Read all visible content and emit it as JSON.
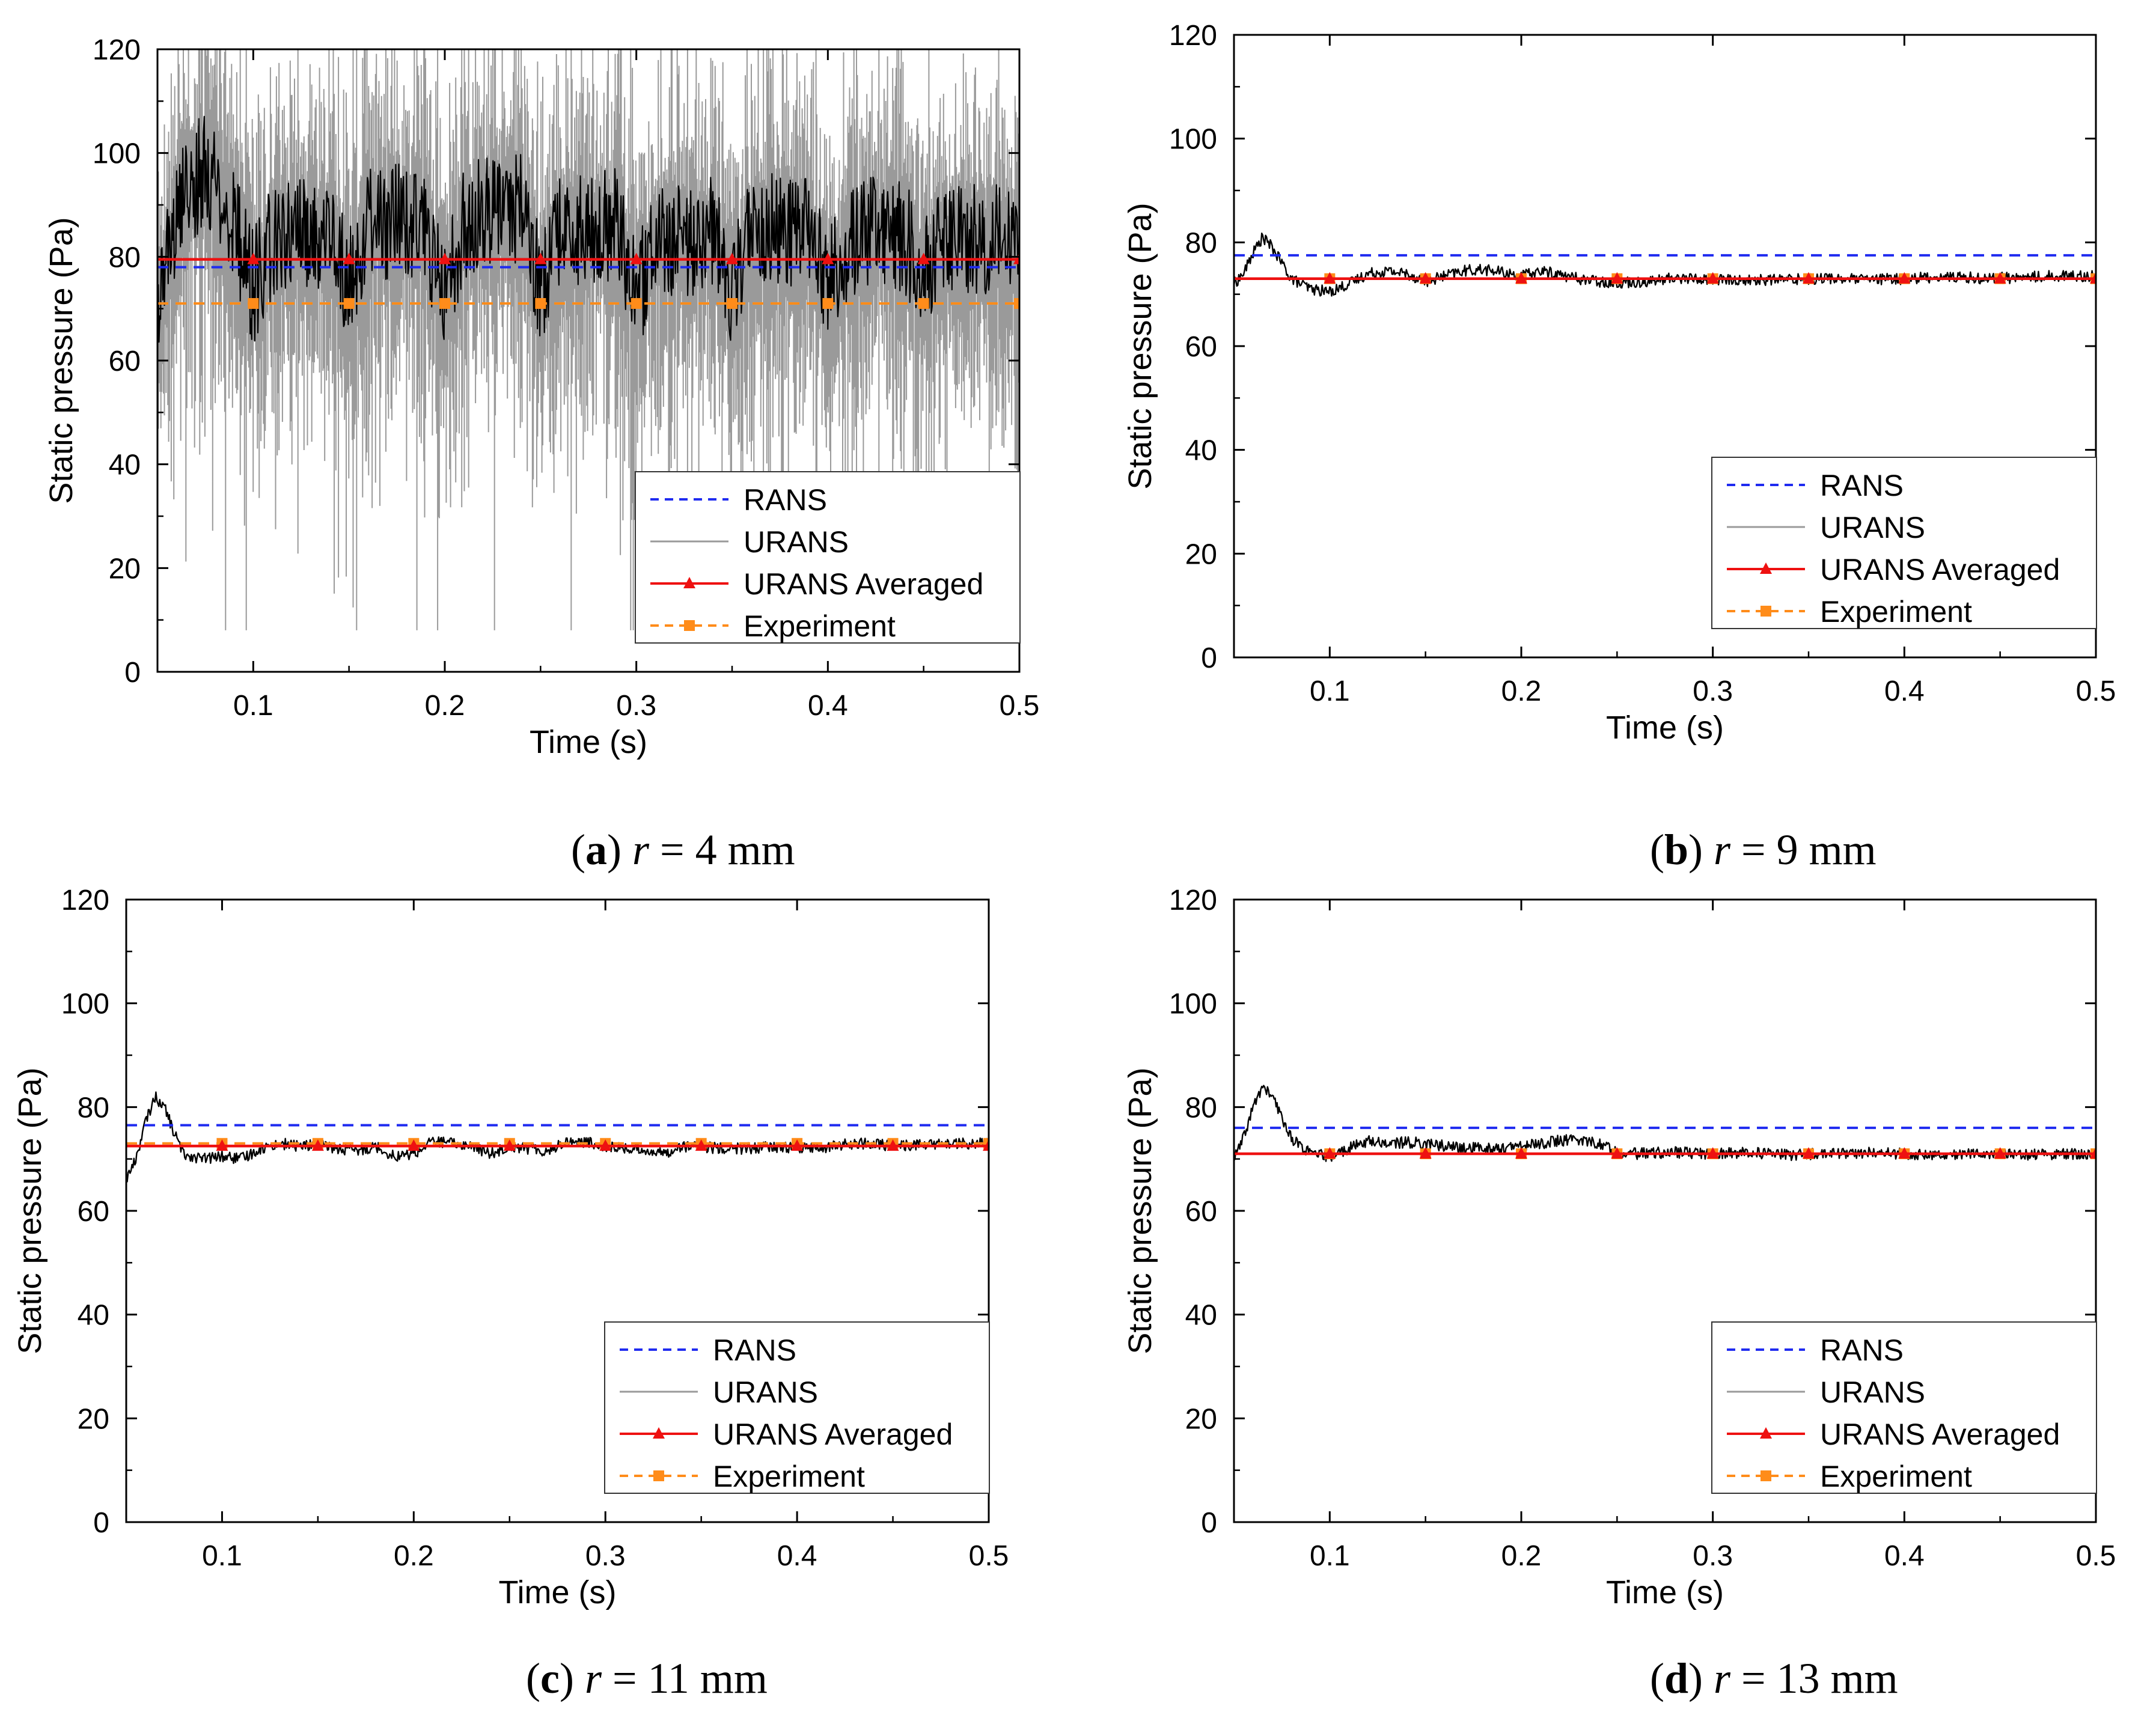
{
  "colors": {
    "rans": "#1f2bf0",
    "urans": "#000000",
    "urans_spikes": "#9a9a9a",
    "urans_avg": "#ee1111",
    "experiment": "#ff8c1a",
    "axis": "#000000"
  },
  "chart_data": [
    {
      "id": "a",
      "type": "line",
      "title": "",
      "xlabel": "Time (s)",
      "ylabel": "Static pressure (Pa)",
      "xlim": [
        0.05,
        0.5
      ],
      "ylim": [
        0,
        120
      ],
      "xticks": [
        0.1,
        0.2,
        0.3,
        0.4,
        0.5
      ],
      "xtick_labels": [
        "0.1",
        "0.2",
        "0.3",
        "0.4",
        "0.5"
      ],
      "yticks": [
        0,
        20,
        40,
        60,
        80,
        100,
        120
      ],
      "ytick_labels": [
        "0",
        "20",
        "40",
        "60",
        "80",
        "100",
        "120"
      ],
      "legend_position": "bottom-right",
      "caption": {
        "letter": "a",
        "pre": "(",
        "mid": ") ",
        "var": "r",
        "post": " = 4 mm"
      },
      "series": [
        {
          "name": "RANS",
          "style": "dashed",
          "values": [
            [
              0.05,
              78
            ],
            [
              0.5,
              78
            ]
          ]
        },
        {
          "name": "URANS",
          "style": "thin",
          "values": [
            [
              0.05,
              68
            ],
            [
              0.06,
              88
            ],
            [
              0.075,
              98
            ],
            [
              0.09,
              86
            ],
            [
              0.1,
              74
            ],
            [
              0.11,
              83
            ],
            [
              0.125,
              85
            ],
            [
              0.14,
              84
            ],
            [
              0.15,
              74
            ],
            [
              0.16,
              86
            ],
            [
              0.175,
              87
            ],
            [
              0.19,
              85
            ],
            [
              0.2,
              73
            ],
            [
              0.21,
              86
            ],
            [
              0.225,
              90
            ],
            [
              0.24,
              89
            ],
            [
              0.25,
              74
            ],
            [
              0.26,
              85
            ],
            [
              0.275,
              86
            ],
            [
              0.29,
              86
            ],
            [
              0.3,
              72
            ],
            [
              0.31,
              83
            ],
            [
              0.325,
              83
            ],
            [
              0.34,
              85
            ],
            [
              0.35,
              74
            ],
            [
              0.36,
              84
            ],
            [
              0.375,
              86
            ],
            [
              0.39,
              84
            ],
            [
              0.4,
              74
            ],
            [
              0.41,
              82
            ],
            [
              0.425,
              85
            ],
            [
              0.44,
              84
            ],
            [
              0.45,
              76
            ],
            [
              0.46,
              82
            ],
            [
              0.475,
              84
            ],
            [
              0.49,
              83
            ],
            [
              0.5,
              80
            ]
          ]
        },
        {
          "name": "URANS Averaged",
          "style": "solid-triangle",
          "values": [
            [
              0.05,
              79.5
            ],
            [
              0.5,
              79.5
            ]
          ]
        },
        {
          "name": "Experiment",
          "style": "dashed-square",
          "values": [
            [
              0.05,
              71
            ],
            [
              0.5,
              71
            ]
          ]
        }
      ]
    },
    {
      "id": "b",
      "type": "line",
      "title": "",
      "xlabel": "Time (s)",
      "ylabel": "Static pressure (Pa)",
      "xlim": [
        0.05,
        0.5
      ],
      "ylim": [
        0,
        120
      ],
      "xticks": [
        0.1,
        0.2,
        0.3,
        0.4,
        0.5
      ],
      "xtick_labels": [
        "0.1",
        "0.2",
        "0.3",
        "0.4",
        "0.5"
      ],
      "yticks": [
        0,
        20,
        40,
        60,
        80,
        100,
        120
      ],
      "ytick_labels": [
        "0",
        "20",
        "40",
        "60",
        "80",
        "100",
        "120"
      ],
      "legend_position": "bottom-right",
      "caption": {
        "letter": "b",
        "pre": "(",
        "mid": ") ",
        "var": "r",
        "post": " = 9 mm"
      },
      "series": [
        {
          "name": "RANS",
          "style": "dashed",
          "values": [
            [
              0.05,
              77.5
            ],
            [
              0.5,
              77.5
            ]
          ]
        },
        {
          "name": "URANS",
          "style": "thin",
          "values": [
            [
              0.05,
              72
            ],
            [
              0.055,
              74
            ],
            [
              0.06,
              78
            ],
            [
              0.065,
              81
            ],
            [
              0.07,
              79
            ],
            [
              0.075,
              76
            ],
            [
              0.08,
              73
            ],
            [
              0.09,
              71
            ],
            [
              0.1,
              70.5
            ],
            [
              0.11,
              72
            ],
            [
              0.12,
              74
            ],
            [
              0.13,
              74.5
            ],
            [
              0.14,
              74
            ],
            [
              0.15,
              72.5
            ],
            [
              0.16,
              73.5
            ],
            [
              0.17,
              74.5
            ],
            [
              0.18,
              74.8
            ],
            [
              0.19,
              74.2
            ],
            [
              0.2,
              73.5
            ],
            [
              0.21,
              74.5
            ],
            [
              0.22,
              73.8
            ],
            [
              0.23,
              73
            ],
            [
              0.24,
              72.5
            ],
            [
              0.25,
              72.3
            ],
            [
              0.26,
              72.4
            ],
            [
              0.27,
              72.6
            ],
            [
              0.28,
              73.2
            ],
            [
              0.29,
              73
            ],
            [
              0.3,
              72.8
            ],
            [
              0.32,
              72.7
            ],
            [
              0.34,
              72.9
            ],
            [
              0.36,
              73.1
            ],
            [
              0.38,
              72.8
            ],
            [
              0.4,
              73
            ],
            [
              0.42,
              73.4
            ],
            [
              0.44,
              73.1
            ],
            [
              0.46,
              73.2
            ],
            [
              0.48,
              73.6
            ],
            [
              0.5,
              73.5
            ]
          ]
        },
        {
          "name": "URANS Averaged",
          "style": "solid-triangle",
          "values": [
            [
              0.05,
              73
            ],
            [
              0.5,
              73
            ]
          ]
        },
        {
          "name": "Experiment",
          "style": "dashed-square",
          "values": [
            [
              0.05,
              73
            ],
            [
              0.5,
              73
            ]
          ]
        }
      ]
    },
    {
      "id": "c",
      "type": "line",
      "title": "",
      "xlabel": "Time (s)",
      "ylabel": "Static pressure (Pa)",
      "xlim": [
        0.05,
        0.5
      ],
      "ylim": [
        0,
        120
      ],
      "xticks": [
        0.1,
        0.2,
        0.3,
        0.4,
        0.5
      ],
      "xtick_labels": [
        "0.1",
        "0.2",
        "0.3",
        "0.4",
        "0.5"
      ],
      "yticks": [
        0,
        20,
        40,
        60,
        80,
        100,
        120
      ],
      "ytick_labels": [
        "0",
        "20",
        "40",
        "60",
        "80",
        "100",
        "120"
      ],
      "legend_position": "bottom-right",
      "caption": {
        "letter": "c",
        "pre": "(",
        "mid": ") ",
        "var": "r",
        "post": " = 11 mm"
      },
      "series": [
        {
          "name": "RANS",
          "style": "dashed",
          "values": [
            [
              0.05,
              76.5
            ],
            [
              0.5,
              76.5
            ]
          ]
        },
        {
          "name": "URANS",
          "style": "thin",
          "values": [
            [
              0.05,
              66
            ],
            [
              0.055,
              70
            ],
            [
              0.06,
              77
            ],
            [
              0.065,
              82
            ],
            [
              0.07,
              80
            ],
            [
              0.075,
              75
            ],
            [
              0.08,
              71
            ],
            [
              0.09,
              70
            ],
            [
              0.1,
              70.5
            ],
            [
              0.11,
              70
            ],
            [
              0.12,
              72
            ],
            [
              0.13,
              73
            ],
            [
              0.14,
              72.5
            ],
            [
              0.15,
              72.8
            ],
            [
              0.16,
              72
            ],
            [
              0.17,
              71.5
            ],
            [
              0.18,
              72.5
            ],
            [
              0.19,
              70.5
            ],
            [
              0.2,
              71
            ],
            [
              0.21,
              73.5
            ],
            [
              0.22,
              73
            ],
            [
              0.23,
              72.5
            ],
            [
              0.24,
              71
            ],
            [
              0.25,
              72.5
            ],
            [
              0.26,
              72
            ],
            [
              0.27,
              71.5
            ],
            [
              0.28,
              73.5
            ],
            [
              0.29,
              73.2
            ],
            [
              0.3,
              72.5
            ],
            [
              0.31,
              72
            ],
            [
              0.32,
              71.8
            ],
            [
              0.33,
              71
            ],
            [
              0.34,
              72.5
            ],
            [
              0.35,
              72.2
            ],
            [
              0.37,
              72
            ],
            [
              0.39,
              72.3
            ],
            [
              0.41,
              72
            ],
            [
              0.43,
              73
            ],
            [
              0.45,
              72.6
            ],
            [
              0.47,
              72.8
            ],
            [
              0.5,
              73
            ]
          ]
        },
        {
          "name": "URANS Averaged",
          "style": "solid-triangle",
          "values": [
            [
              0.05,
              72.5
            ],
            [
              0.5,
              72.5
            ]
          ]
        },
        {
          "name": "Experiment",
          "style": "dashed-square",
          "values": [
            [
              0.05,
              73
            ],
            [
              0.5,
              73
            ]
          ]
        }
      ]
    },
    {
      "id": "d",
      "type": "line",
      "title": "",
      "xlabel": "Time (s)",
      "ylabel": "Static pressure (Pa)",
      "xlim": [
        0.05,
        0.5
      ],
      "ylim": [
        0,
        120
      ],
      "xticks": [
        0.1,
        0.2,
        0.3,
        0.4,
        0.5
      ],
      "xtick_labels": [
        "0.1",
        "0.2",
        "0.3",
        "0.4",
        "0.5"
      ],
      "yticks": [
        0,
        20,
        40,
        60,
        80,
        100,
        120
      ],
      "ytick_labels": [
        "0",
        "20",
        "40",
        "60",
        "80",
        "100",
        "120"
      ],
      "legend_position": "bottom-right",
      "caption": {
        "letter": "d",
        "pre": "(",
        "mid": ") ",
        "var": "r",
        "post": " = 13 mm"
      },
      "series": [
        {
          "name": "RANS",
          "style": "dashed",
          "values": [
            [
              0.05,
              76
            ],
            [
              0.5,
              76
            ]
          ]
        },
        {
          "name": "URANS",
          "style": "thin",
          "values": [
            [
              0.05,
              70
            ],
            [
              0.055,
              74
            ],
            [
              0.06,
              80
            ],
            [
              0.065,
              84
            ],
            [
              0.07,
              82
            ],
            [
              0.075,
              78
            ],
            [
              0.08,
              74
            ],
            [
              0.09,
              71
            ],
            [
              0.1,
              70.5
            ],
            [
              0.11,
              72
            ],
            [
              0.12,
              73.5
            ],
            [
              0.13,
              73
            ],
            [
              0.14,
              73.2
            ],
            [
              0.15,
              73
            ],
            [
              0.16,
              72.5
            ],
            [
              0.17,
              72
            ],
            [
              0.18,
              72.2
            ],
            [
              0.19,
              72
            ],
            [
              0.2,
              72.5
            ],
            [
              0.21,
              73
            ],
            [
              0.22,
              73.5
            ],
            [
              0.23,
              73.8
            ],
            [
              0.24,
              73
            ],
            [
              0.25,
              71.5
            ],
            [
              0.26,
              71
            ],
            [
              0.28,
              71.3
            ],
            [
              0.3,
              71
            ],
            [
              0.32,
              71.2
            ],
            [
              0.34,
              70.8
            ],
            [
              0.36,
              71
            ],
            [
              0.38,
              71.2
            ],
            [
              0.4,
              71
            ],
            [
              0.42,
              70.9
            ],
            [
              0.44,
              71.1
            ],
            [
              0.46,
              70.8
            ],
            [
              0.48,
              71
            ],
            [
              0.5,
              70.8
            ]
          ]
        },
        {
          "name": "URANS Averaged",
          "style": "solid-triangle",
          "values": [
            [
              0.05,
              71
            ],
            [
              0.5,
              71
            ]
          ]
        },
        {
          "name": "Experiment",
          "style": "dashed-square",
          "values": [
            [
              0.05,
              71
            ],
            [
              0.5,
              71
            ]
          ]
        }
      ]
    }
  ]
}
